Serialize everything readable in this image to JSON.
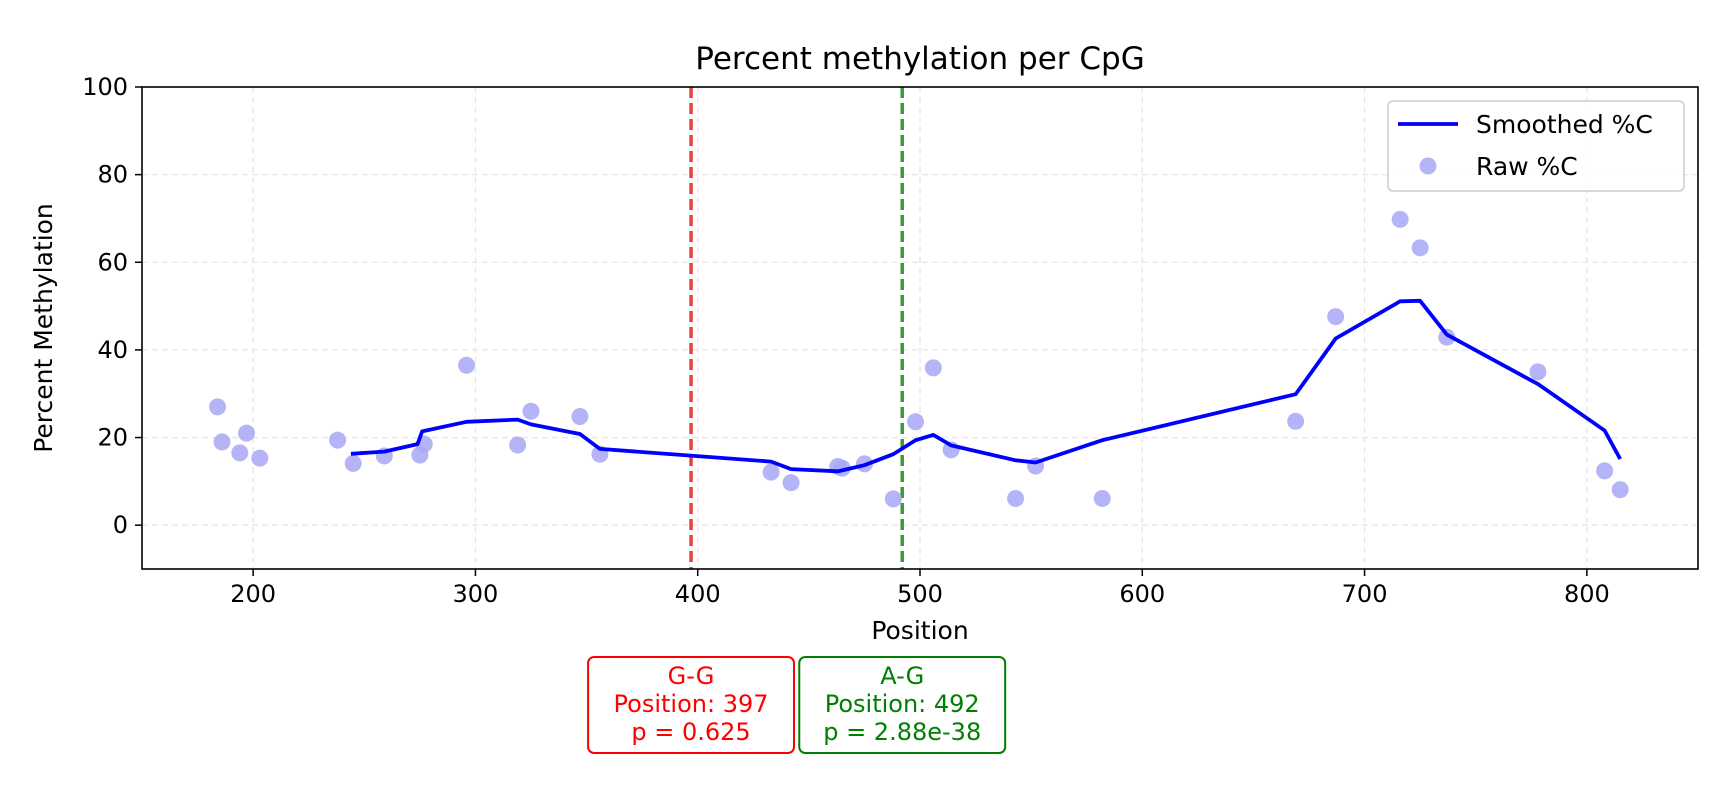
{
  "chart_data": {
    "type": "line",
    "title": "Percent methylation per CpG",
    "xlabel": "Position",
    "ylabel": "Percent Methylation",
    "xlim": [
      150,
      850
    ],
    "ylim": [
      -10,
      100
    ],
    "xticks": [
      200,
      300,
      400,
      500,
      600,
      700,
      800
    ],
    "yticks": [
      0,
      20,
      40,
      60,
      80,
      100
    ],
    "grid": true,
    "legend_position": "top-right",
    "series": [
      {
        "name": "Smoothed %C",
        "kind": "line",
        "color": "#0000ff",
        "x": [
          244,
          259,
          274,
          276,
          296,
          319,
          325,
          347,
          356,
          433,
          442,
          463,
          465,
          475,
          488,
          498,
          506,
          514,
          543,
          552,
          582,
          669,
          687,
          716,
          725,
          737,
          778,
          808,
          815
        ],
        "y": [
          16.3,
          16.8,
          18.5,
          21.4,
          23.6,
          24.1,
          23,
          20.8,
          17.4,
          14.5,
          12.8,
          12.3,
          12.5,
          13.7,
          16.2,
          19.4,
          20.6,
          18.2,
          14.8,
          14.3,
          19.4,
          29.9,
          42.6,
          51.1,
          51.2,
          43.5,
          32.2,
          21.6,
          15.1
        ]
      },
      {
        "name": "Raw %C",
        "kind": "scatter",
        "color": "#a7a7f6",
        "x": [
          184,
          186,
          194,
          197,
          203,
          238,
          245,
          259,
          275,
          277,
          296,
          319,
          325,
          347,
          356,
          433,
          442,
          463,
          465,
          475,
          488,
          498,
          506,
          514,
          543,
          552,
          582,
          669,
          687,
          716,
          725,
          737,
          778,
          808,
          815
        ],
        "y": [
          27,
          19,
          16.5,
          21,
          15.3,
          19.4,
          14.1,
          15.8,
          16,
          18.5,
          36.5,
          18.3,
          26,
          24.8,
          16.2,
          12.1,
          9.7,
          13.4,
          13,
          14,
          6,
          23.6,
          35.9,
          17.2,
          6.1,
          13.5,
          6.1,
          23.7,
          47.6,
          69.8,
          63.3,
          42.9,
          35,
          12.4,
          8.1
        ]
      }
    ],
    "annotations": [
      {
        "label": "G-G",
        "position_text": "Position: 397",
        "p_text": "p = 0.625",
        "x": 397,
        "color": "#ff0000",
        "line_color": "#e8413c"
      },
      {
        "label": "A-G",
        "position_text": "Position: 492",
        "p_text": "p = 2.88e-38",
        "x": 492,
        "color": "#008000",
        "line_color": "#3a9a3a"
      }
    ]
  }
}
